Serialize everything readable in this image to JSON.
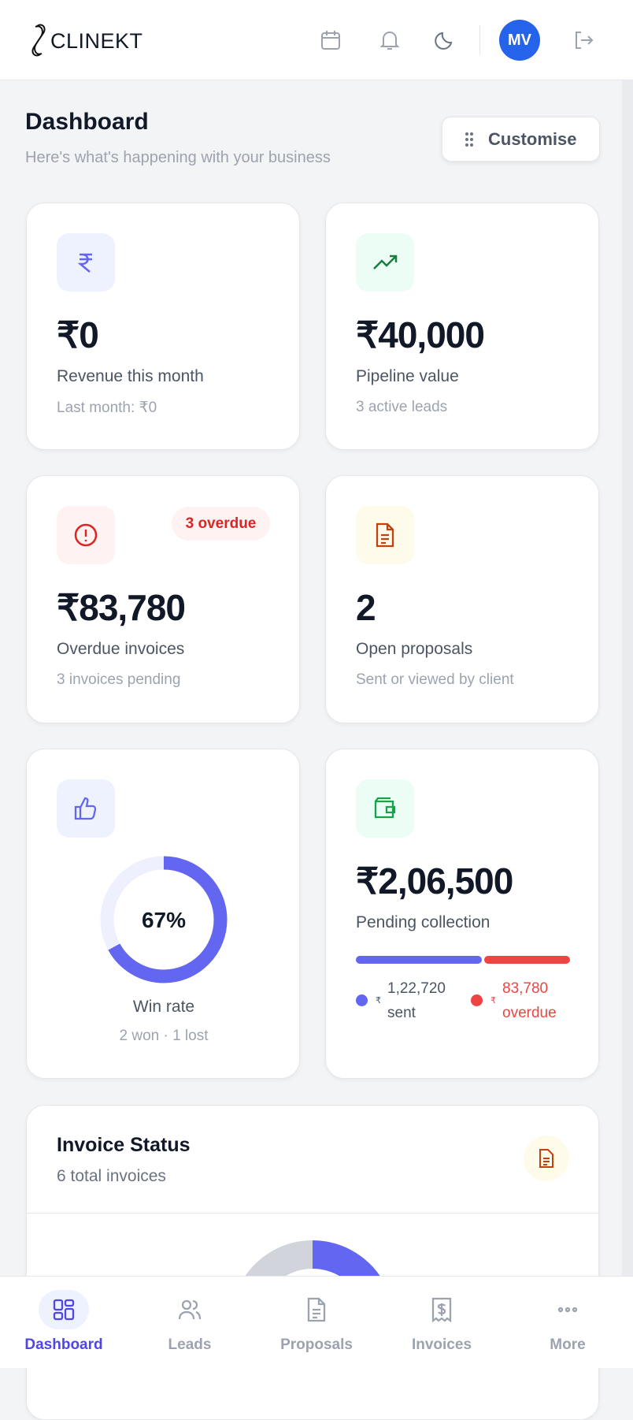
{
  "header": {
    "brand": "CLINEKT",
    "avatar": "MV"
  },
  "page": {
    "title": "Dashboard",
    "subtitle": "Here's what's happening with your business",
    "customise": "Customise"
  },
  "cards": [
    {
      "value": "₹0",
      "label": "Revenue this month",
      "sub": "Last month: ₹0"
    },
    {
      "value": "₹40,000",
      "label": "Pipeline value",
      "sub": "3 active leads"
    },
    {
      "value": "₹83,780",
      "label": "Overdue invoices",
      "sub": "3 invoices pending",
      "badge": "3 overdue"
    },
    {
      "value": "2",
      "label": "Open proposals",
      "sub": "Sent or viewed by client"
    }
  ],
  "win_rate": {
    "type": "donut",
    "value": 67,
    "value_label": "67%",
    "label": "Win rate",
    "sub": "2 won · 1 lost",
    "color": "#6366f1"
  },
  "pending": {
    "value": "₹2,06,500",
    "label": "Pending collection",
    "series": [
      {
        "name": "sent",
        "color": "#6366f1",
        "value": 122720,
        "value_label": "1,22,720",
        "currency": "₹"
      },
      {
        "name": "overdue",
        "color": "#ef4444",
        "value": 83780,
        "value_label": "83,780",
        "currency": "₹"
      }
    ]
  },
  "invoice_status": {
    "title": "Invoice Status",
    "sub": "6 total invoices"
  },
  "nav": [
    "Dashboard",
    "Leads",
    "Proposals",
    "Invoices",
    "More"
  ]
}
